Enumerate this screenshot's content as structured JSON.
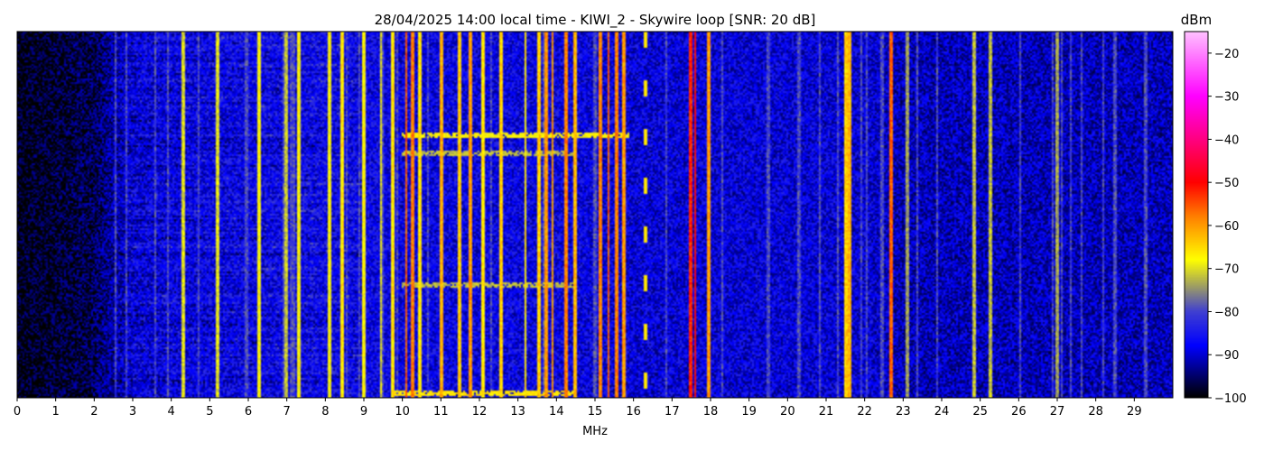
{
  "chart_data": {
    "type": "heatmap",
    "title": "28/04/2025 14:00 local time - KIWI_2 - Skywire loop [SNR: 20 dB]",
    "xlabel": "MHz",
    "xlim": [
      0,
      30
    ],
    "x_ticks": [
      "0",
      "1",
      "2",
      "3",
      "4",
      "5",
      "6",
      "7",
      "8",
      "9",
      "10",
      "11",
      "12",
      "13",
      "14",
      "15",
      "16",
      "17",
      "18",
      "19",
      "20",
      "21",
      "22",
      "23",
      "24",
      "25",
      "26",
      "27",
      "28",
      "29"
    ],
    "colorbar": {
      "label": "dBm",
      "range": [
        -100,
        -15
      ],
      "ticks": [
        "-20",
        "-30",
        "-40",
        "-50",
        "-60",
        "-70",
        "-80",
        "-90",
        "-100"
      ],
      "stops": [
        {
          "value": -100,
          "color": "#000000"
        },
        {
          "value": -88,
          "color": "#0000ff"
        },
        {
          "value": -80,
          "color": "#4040d0"
        },
        {
          "value": -74,
          "color": "#a0a060"
        },
        {
          "value": -68,
          "color": "#ffff00"
        },
        {
          "value": -58,
          "color": "#ff8000"
        },
        {
          "value": -50,
          "color": "#ff0000"
        },
        {
          "value": -40,
          "color": "#ff0080"
        },
        {
          "value": -30,
          "color": "#ff00ff"
        },
        {
          "value": -15,
          "color": "#ffc0ff"
        }
      ]
    },
    "background_level": {
      "mhz": [
        0,
        1,
        2,
        2.5,
        3,
        5,
        8,
        10,
        14,
        16,
        18,
        22,
        23,
        30
      ],
      "dbm": [
        -99,
        -98,
        -96,
        -92,
        -89,
        -88,
        -87,
        -88,
        -88,
        -89,
        -89,
        -89,
        -91,
        -91
      ]
    },
    "strong_signals_mhz": [
      {
        "f": 4.3,
        "dbm": -70
      },
      {
        "f": 5.2,
        "dbm": -70
      },
      {
        "f": 6.3,
        "dbm": -68
      },
      {
        "f": 7.0,
        "dbm": -72
      },
      {
        "f": 7.3,
        "dbm": -68
      },
      {
        "f": 8.1,
        "dbm": -68
      },
      {
        "f": 8.45,
        "dbm": -66
      },
      {
        "f": 9.0,
        "dbm": -68
      },
      {
        "f": 9.45,
        "dbm": -70
      },
      {
        "f": 9.75,
        "dbm": -66
      },
      {
        "f": 10.1,
        "dbm": -56
      },
      {
        "f": 10.25,
        "dbm": -58
      },
      {
        "f": 10.45,
        "dbm": -66
      },
      {
        "f": 11.0,
        "dbm": -62
      },
      {
        "f": 11.5,
        "dbm": -64
      },
      {
        "f": 11.75,
        "dbm": -60
      },
      {
        "f": 12.1,
        "dbm": -66
      },
      {
        "f": 12.55,
        "dbm": -64
      },
      {
        "f": 13.2,
        "dbm": -66
      },
      {
        "f": 13.55,
        "dbm": -64
      },
      {
        "f": 13.75,
        "dbm": -60
      },
      {
        "f": 13.9,
        "dbm": -60
      },
      {
        "f": 14.25,
        "dbm": -58
      },
      {
        "f": 14.5,
        "dbm": -62
      },
      {
        "f": 15.15,
        "dbm": -58
      },
      {
        "f": 15.35,
        "dbm": -56
      },
      {
        "f": 15.55,
        "dbm": -58
      },
      {
        "f": 15.75,
        "dbm": -60
      },
      {
        "f": 17.5,
        "dbm": -52
      },
      {
        "f": 17.6,
        "dbm": -50
      },
      {
        "f": 17.95,
        "dbm": -60
      },
      {
        "f": 21.5,
        "dbm": -64
      },
      {
        "f": 21.6,
        "dbm": -62
      },
      {
        "f": 22.7,
        "dbm": -56
      },
      {
        "f": 23.1,
        "dbm": -74
      },
      {
        "f": 24.85,
        "dbm": -72
      },
      {
        "f": 25.25,
        "dbm": -72
      },
      {
        "f": 27.0,
        "dbm": -74
      }
    ],
    "weak_signals_mhz": [
      2.55,
      2.85,
      3.6,
      3.9,
      4.7,
      5.95,
      6.9,
      7.1,
      7.15,
      7.2,
      8.55,
      8.9,
      9.5,
      9.85,
      10.65,
      11.8,
      12.3,
      13.65,
      15.0,
      16.85,
      18.3,
      19.5,
      20.3,
      20.85,
      21.3,
      21.9,
      22.05,
      22.45,
      23.35,
      23.9,
      26.05,
      26.9,
      27.1,
      27.35,
      27.65,
      28.2,
      28.5,
      29.3
    ],
    "intermittent_signals": [
      {
        "f": 16.3,
        "dbm": -66,
        "pattern": "dashed"
      }
    ],
    "horizontal_bursts": [
      {
        "f_start": 10.0,
        "f_end": 15.9,
        "time_fraction": 0.28,
        "dbm": -68
      },
      {
        "f_start": 10.0,
        "f_end": 14.5,
        "time_fraction": 0.33,
        "dbm": -72
      },
      {
        "f_start": 10.0,
        "f_end": 14.5,
        "time_fraction": 0.69,
        "dbm": -72
      },
      {
        "f_start": 9.8,
        "f_end": 14.5,
        "time_fraction": 0.985,
        "dbm": -66
      }
    ]
  }
}
